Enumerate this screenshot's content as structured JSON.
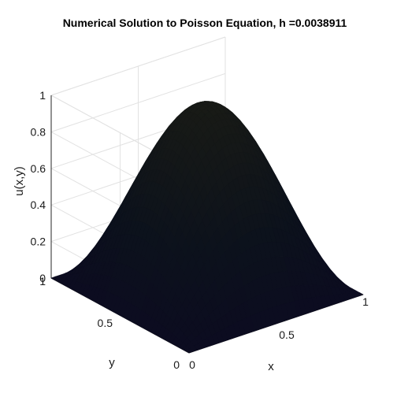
{
  "chart_data": {
    "type": "surface",
    "title": "Numerical Solution to Poisson Equation, h =0.0038911",
    "xlabel": "x",
    "ylabel": "y",
    "zlabel": "u(x,y)",
    "xlim": [
      0,
      1
    ],
    "ylim": [
      0,
      1
    ],
    "zlim": [
      0,
      1
    ],
    "x_ticks": [
      "0",
      "0.5",
      "1"
    ],
    "y_ticks": [
      "0",
      "0.5",
      "1"
    ],
    "z_ticks": [
      "0",
      "0.2",
      "0.4",
      "0.6",
      "0.8",
      "1"
    ],
    "z_tick_values": [
      0,
      0.2,
      0.4,
      0.6,
      0.8,
      1
    ],
    "surface": "u(x,y) = sin(pi*x) * sin(pi*y)",
    "peak": {
      "x": 0.5,
      "y": 0.5,
      "u": 1.0
    },
    "grid": true,
    "colormap": "parula (rendered very dark)"
  }
}
